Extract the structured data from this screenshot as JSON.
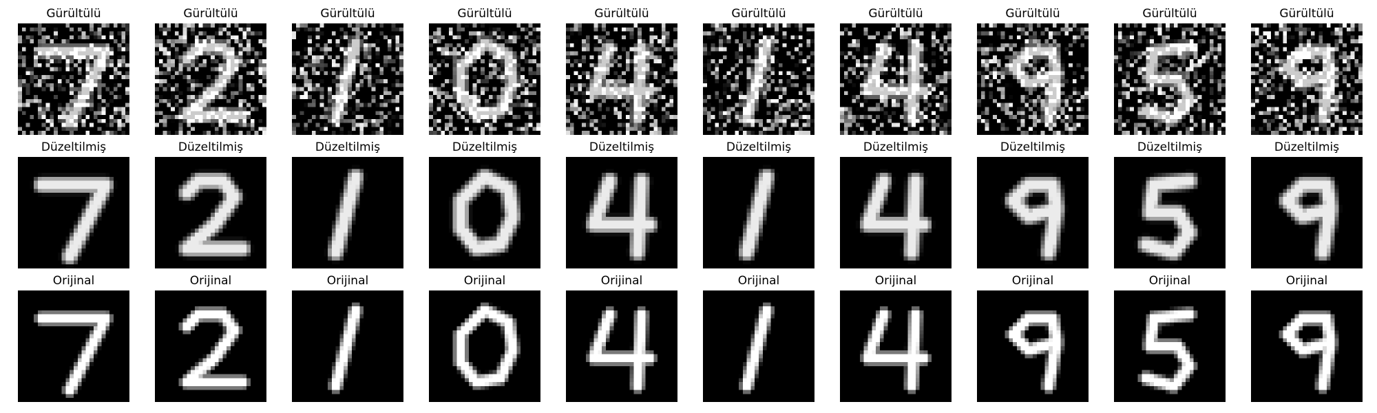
{
  "figure": {
    "row_titles": [
      "Gürültülü",
      "Düzeltilmiş",
      "Orijinal"
    ],
    "digits": [
      "7",
      "2",
      "1",
      "0",
      "4",
      "1",
      "4",
      "9",
      "5",
      "9"
    ],
    "colormap": "gray",
    "image_size": 28
  }
}
